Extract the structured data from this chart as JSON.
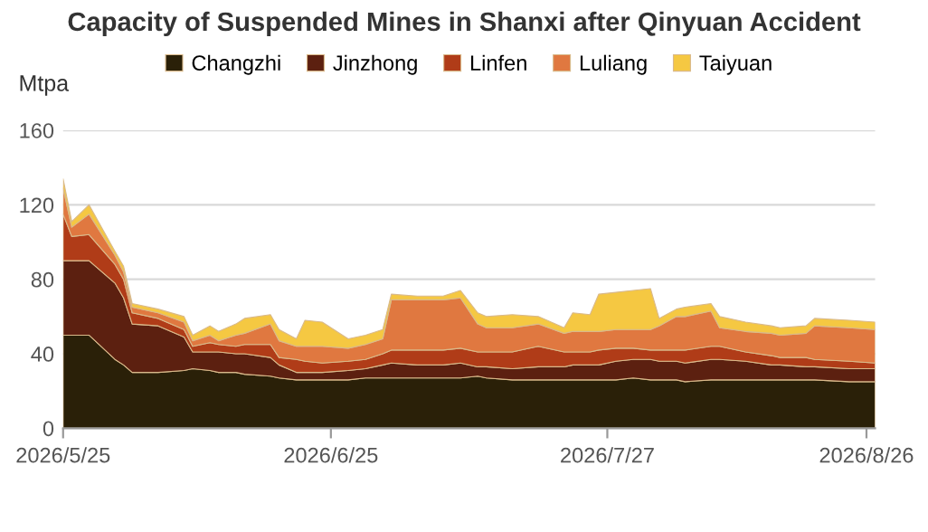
{
  "chart_data": {
    "type": "area",
    "stacked": true,
    "title": "Capacity of Suspended Mines in Shanxi after Qinyuan Accident",
    "ylabel": "Mtpa",
    "x": [
      "2026-05-25",
      "2026-05-26",
      "2026-05-28",
      "2026-05-31",
      "2026-06-01",
      "2026-06-02",
      "2026-06-05",
      "2026-06-08",
      "2026-06-09",
      "2026-06-11",
      "2026-06-12",
      "2026-06-14",
      "2026-06-15",
      "2026-06-18",
      "2026-06-19",
      "2026-06-21",
      "2026-06-22",
      "2026-06-24",
      "2026-06-27",
      "2026-06-29",
      "2026-07-01",
      "2026-07-02",
      "2026-07-05",
      "2026-07-08",
      "2026-07-10",
      "2026-07-12",
      "2026-07-13",
      "2026-07-16",
      "2026-07-19",
      "2026-07-22",
      "2026-07-23",
      "2026-07-25",
      "2026-07-26",
      "2026-07-28",
      "2026-07-30",
      "2026-08-01",
      "2026-08-02",
      "2026-08-04",
      "2026-08-05",
      "2026-08-08",
      "2026-08-09",
      "2026-08-12",
      "2026-08-15",
      "2026-08-16",
      "2026-08-19",
      "2026-08-20",
      "2026-08-24",
      "2026-08-27"
    ],
    "series": [
      {
        "name": "Changzhi",
        "color": "#2a2008",
        "values": [
          50,
          50,
          50,
          37,
          34,
          30,
          30,
          31,
          32,
          31,
          30,
          30,
          29,
          28,
          27,
          26,
          26,
          26,
          26,
          27,
          27,
          27,
          27,
          27,
          27,
          28,
          27,
          26,
          26,
          26,
          26,
          26,
          26,
          26,
          27,
          26,
          26,
          26,
          25,
          26,
          26,
          26,
          26,
          26,
          26,
          26,
          25,
          25
        ]
      },
      {
        "name": "Jinzhong",
        "color": "#5c2010",
        "values": [
          40,
          40,
          40,
          41,
          36,
          26,
          25,
          18,
          9,
          10,
          11,
          10,
          11,
          10,
          7,
          4,
          4,
          4,
          5,
          5,
          7,
          8,
          7,
          7,
          8,
          5,
          6,
          6,
          7,
          7,
          8,
          8,
          8,
          10,
          10,
          11,
          10,
          10,
          10,
          11,
          11,
          10,
          8,
          8,
          7,
          7,
          7,
          7
        ]
      },
      {
        "name": "Linfen",
        "color": "#b03c18",
        "values": [
          25,
          13,
          14,
          10,
          10,
          6,
          4,
          4,
          3,
          5,
          4,
          4,
          5,
          7,
          4,
          7,
          6,
          5,
          5,
          5,
          6,
          7,
          8,
          8,
          8,
          8,
          8,
          9,
          11,
          8,
          7,
          7,
          8,
          7,
          6,
          5,
          6,
          6,
          7,
          7,
          7,
          5,
          5,
          4,
          5,
          4,
          4,
          3
        ]
      },
      {
        "name": "Luliang",
        "color": "#e07840",
        "values": [
          14,
          5,
          11,
          5,
          4,
          3,
          3,
          4,
          3,
          4,
          2,
          6,
          6,
          11,
          9,
          7,
          8,
          9,
          7,
          8,
          8,
          27,
          27,
          27,
          27,
          15,
          13,
          13,
          12,
          10,
          11,
          11,
          10,
          10,
          10,
          11,
          13,
          18,
          18,
          19,
          10,
          11,
          12,
          12,
          13,
          18,
          18,
          18
        ]
      },
      {
        "name": "Taiyuan",
        "color": "#f5c842",
        "values": [
          5,
          3,
          5,
          2,
          3,
          2,
          2,
          3,
          3,
          5,
          5,
          6,
          8,
          5,
          6,
          4,
          14,
          13,
          5,
          5,
          5,
          3,
          2,
          2,
          4,
          6,
          6,
          7,
          4,
          3,
          10,
          9,
          20,
          20,
          21,
          22,
          4,
          4,
          5,
          4,
          6,
          5,
          4,
          4,
          4,
          4,
          4,
          4
        ]
      }
    ],
    "xlim": [
      "2026-05-25",
      "2026-08-27"
    ],
    "xticks": [
      {
        "value": "2026-05-25",
        "label": "2026/5/25"
      },
      {
        "value": "2026-06-25",
        "label": "2026/6/25"
      },
      {
        "value": "2026-07-27",
        "label": "2026/7/27"
      },
      {
        "value": "2026-08-26",
        "label": "2026/8/26"
      }
    ],
    "ylim": [
      0,
      160
    ],
    "yticks": [
      0,
      40,
      80,
      120,
      160
    ],
    "grid": "y",
    "legend": "top"
  }
}
